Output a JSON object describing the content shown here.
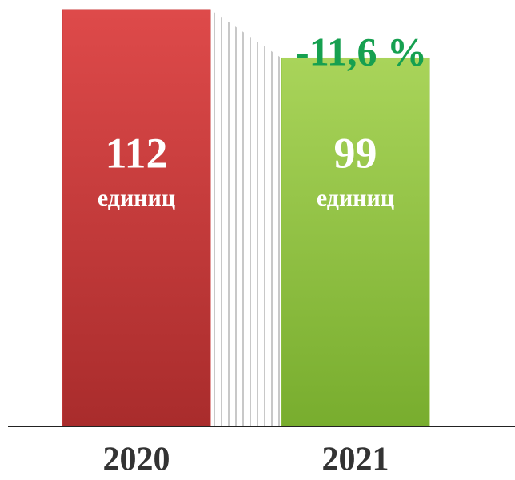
{
  "chart_data": {
    "type": "bar",
    "categories": [
      "2020",
      "2021"
    ],
    "values": [
      112,
      99
    ],
    "colors": [
      "#c93a3a",
      "#8fc23e"
    ],
    "unit_label": "единиц",
    "annotation": "-11,6 %",
    "annotation_color": "#16a050"
  }
}
